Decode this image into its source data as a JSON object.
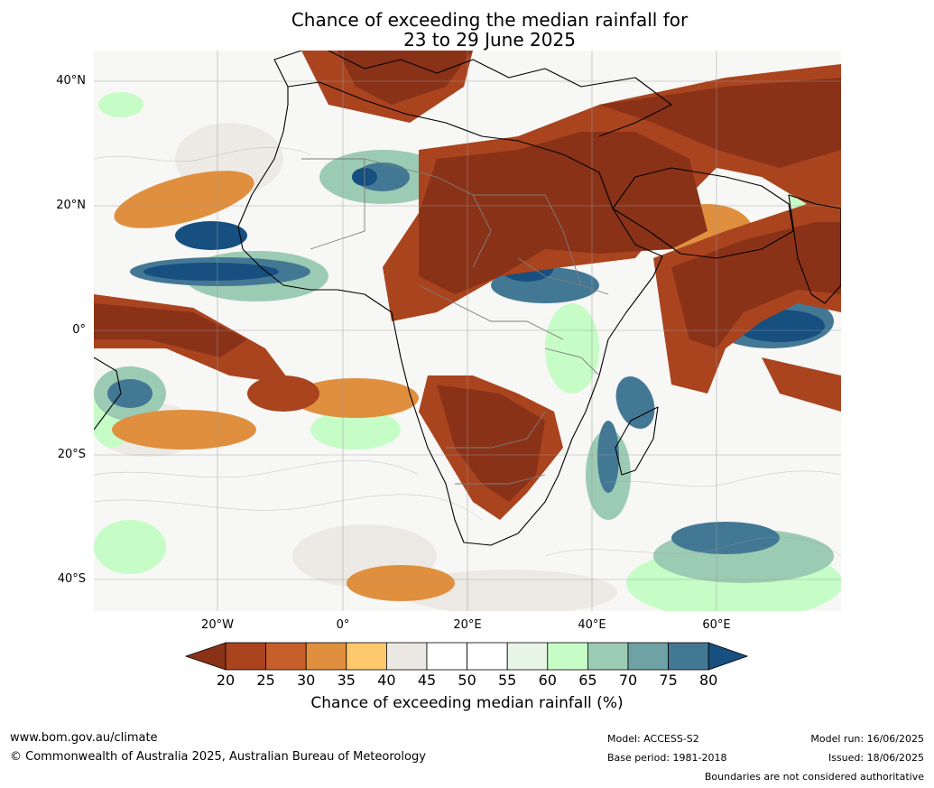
{
  "title": {
    "line1": "Chance of exceeding the median rainfall for",
    "line2": "23 to 29 June 2025"
  },
  "axes": {
    "lat_labels": [
      "40°N",
      "20°N",
      "0°",
      "20°S",
      "40°S"
    ],
    "lon_labels": [
      "20°W",
      "0°",
      "20°E",
      "40°E",
      "60°E"
    ]
  },
  "colorbar": {
    "ticks": [
      "20",
      "25",
      "30",
      "35",
      "40",
      "45",
      "50",
      "55",
      "60",
      "65",
      "70",
      "75",
      "80"
    ],
    "colors": [
      "#8a3218",
      "#a9441f",
      "#c65f2c",
      "#e08f3e",
      "#fdc96c",
      "#ebe8e3",
      "#ffffff",
      "#ffffff",
      "#e6f5e6",
      "#c6fcc6",
      "#9ccbb3",
      "#6ea2a5",
      "#437895",
      "#164f80"
    ],
    "label": "Chance of exceeding median rainfall (%)"
  },
  "footer": {
    "website": "www.bom.gov.au/climate",
    "copyright": "© Commonwealth of Australia 2025, Australian Bureau of Meteorology",
    "model": "Model: ACCESS-S2",
    "base_period": "Base period: 1981-2018",
    "model_run": "Model run: 16/06/2025",
    "issued": "Issued: 18/06/2025",
    "disclaimer": "Boundaries are not considered authoritative"
  }
}
